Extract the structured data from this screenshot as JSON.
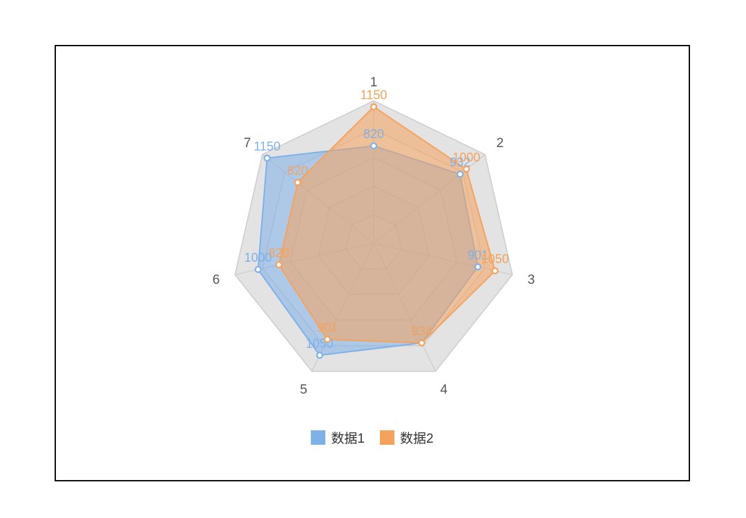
{
  "chart_data": {
    "type": "radar",
    "categories": [
      "1",
      "2",
      "3",
      "4",
      "5",
      "6",
      "7"
    ],
    "max": 1200,
    "grid_levels": 5,
    "series": [
      {
        "name": "数据1",
        "values": [
          820,
          932,
          901,
          934,
          1050,
          1000,
          1150
        ],
        "color": "#7eb1e8"
      },
      {
        "name": "数据2",
        "values": [
          1150,
          1000,
          1050,
          934,
          901,
          820,
          820
        ],
        "color": "#f5a35c"
      }
    ],
    "legend_position": "bottom"
  }
}
